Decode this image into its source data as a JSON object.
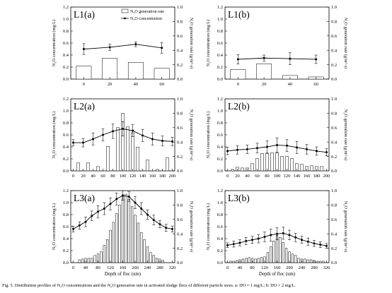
{
  "chart_data": [
    {
      "type": "bar+line",
      "panel_label": "L1(a)",
      "categories": [
        0,
        20,
        40,
        60
      ],
      "bar_series": {
        "name": "N₂O generation rate",
        "values": [
          0.18,
          0.29,
          0.23,
          0.15
        ]
      },
      "line_series": {
        "name": "N₂O concentration",
        "values": [
          0.5,
          0.53,
          0.58,
          0.52
        ],
        "errors": [
          0.09,
          0.05,
          0.04,
          0.09
        ]
      },
      "xlim": [
        -10,
        70
      ],
      "xticks": [
        0,
        20,
        40,
        60
      ],
      "ylim": [
        0,
        1.2
      ],
      "yticks": [
        0,
        0.2,
        0.4,
        0.6,
        0.8,
        1.0,
        1.2
      ],
      "y2lim": [
        0,
        1.0
      ],
      "y2ticks": [
        0,
        0.2,
        0.4,
        0.6,
        0.8,
        1.0
      ],
      "ylabel": "N₂O concentration (mg/L)",
      "y2label": "N₂O generation rate (g/m³·s)",
      "xlabel": "",
      "legend": "top-right"
    },
    {
      "type": "bar+line",
      "panel_label": "L1(b)",
      "categories": [
        0,
        20,
        40,
        60
      ],
      "bar_series": {
        "name": "N₂O generation rate",
        "values": [
          0.13,
          0.21,
          0.05,
          0.03
        ]
      },
      "line_series": {
        "name": "N₂O concentration",
        "values": [
          0.33,
          0.35,
          0.34,
          0.33
        ],
        "errors": [
          0.08,
          0.05,
          0.1,
          0.07
        ]
      },
      "xlim": [
        -10,
        70
      ],
      "xticks": [
        0,
        20,
        40,
        60
      ],
      "ylim": [
        0,
        1.2
      ],
      "yticks": [
        0,
        0.2,
        0.4,
        0.6,
        0.8,
        1.0,
        1.2
      ],
      "y2lim": [
        0,
        1.0
      ],
      "y2ticks": [
        0,
        0.2,
        0.4,
        0.6,
        0.8,
        1.0
      ],
      "ylabel": "N₂O concentration (mg/L)",
      "y2label": "N₂O generation rate (g/m³·s)",
      "xlabel": ""
    },
    {
      "type": "bar+line",
      "panel_label": "L2(a)",
      "categories": [
        0,
        10,
        20,
        30,
        40,
        50,
        60,
        70,
        80,
        90,
        100,
        110,
        120,
        130,
        140,
        150,
        160,
        170,
        180,
        190,
        200
      ],
      "bar_series": {
        "name": "N₂O generation rate",
        "values": [
          0,
          0.11,
          0,
          0.11,
          0,
          0.06,
          0,
          0.34,
          0,
          0.6,
          0.8,
          0.61,
          0.53,
          0.33,
          0,
          0.15,
          0,
          0.02,
          0,
          0.18,
          0
        ]
      },
      "line_series": {
        "x": [
          0,
          20,
          40,
          60,
          80,
          100,
          120,
          140,
          160,
          180,
          200
        ],
        "values": [
          0.47,
          0.47,
          0.53,
          0.6,
          0.66,
          0.7,
          0.67,
          0.59,
          0.53,
          0.5,
          0.49
        ],
        "errors": [
          0.05,
          0.07,
          0.1,
          0.1,
          0.12,
          0.12,
          0.1,
          0.1,
          0.1,
          0.08,
          0.07
        ]
      },
      "xlim": [
        -5,
        205
      ],
      "xticks": [
        0,
        20,
        40,
        60,
        80,
        100,
        120,
        140,
        160,
        180,
        200
      ],
      "ylim": [
        0,
        1.2
      ],
      "yticks": [
        0,
        0.2,
        0.4,
        0.6,
        0.8,
        1.0,
        1.2
      ],
      "y2lim": [
        0,
        1.0
      ],
      "y2ticks": [
        0,
        0.2,
        0.4,
        0.6,
        0.8,
        1.0
      ],
      "ylabel": "N₂O concentration (mg/L)",
      "y2label": "N₂O generation rate (g/m³·s)",
      "xlabel": ""
    },
    {
      "type": "bar+line",
      "panel_label": "L2(b)",
      "categories": [
        0,
        10,
        20,
        30,
        40,
        50,
        60,
        70,
        80,
        90,
        100,
        110,
        120,
        130,
        140,
        150,
        160,
        170,
        180,
        190,
        200
      ],
      "bar_series": {
        "name": "N₂O generation rate",
        "values": [
          0,
          0.02,
          0.05,
          0.04,
          0.04,
          0.1,
          0.17,
          0.24,
          0.24,
          0.25,
          0.25,
          0.2,
          0.2,
          0.17,
          0.1,
          0.09,
          0.06,
          0.07,
          0.06,
          0.06,
          0
        ]
      },
      "line_series": {
        "x": [
          0,
          20,
          40,
          60,
          80,
          100,
          120,
          140,
          160,
          180,
          200
        ],
        "values": [
          0.33,
          0.35,
          0.36,
          0.38,
          0.4,
          0.43,
          0.42,
          0.39,
          0.36,
          0.33,
          0.31
        ],
        "errors": [
          0.06,
          0.07,
          0.07,
          0.08,
          0.1,
          0.12,
          0.1,
          0.1,
          0.08,
          0.07,
          0.06
        ]
      },
      "xlim": [
        -5,
        205
      ],
      "xticks": [
        0,
        20,
        40,
        60,
        80,
        100,
        120,
        140,
        160,
        180,
        200
      ],
      "ylim": [
        0,
        1.2
      ],
      "yticks": [
        0,
        0.2,
        0.4,
        0.6,
        0.8,
        1.0,
        1.2
      ],
      "y2lim": [
        0,
        1.0
      ],
      "y2ticks": [
        0,
        0.2,
        0.4,
        0.6,
        0.8,
        1.0
      ],
      "ylabel": "N₂O concentration (mg/L)",
      "y2label": "N₂O generation rate (g/m³·s)",
      "xlabel": ""
    },
    {
      "type": "bar+line",
      "panel_label": "L3(a)",
      "categories": [
        0,
        10,
        20,
        30,
        40,
        50,
        60,
        70,
        80,
        90,
        100,
        110,
        120,
        130,
        140,
        150,
        160,
        170,
        180,
        190,
        200,
        210,
        220,
        230,
        240,
        250,
        260,
        270,
        280,
        290,
        300,
        310,
        320
      ],
      "bar_series": {
        "name": "N₂O generation rate",
        "values": [
          0,
          0,
          0.04,
          0.05,
          0.06,
          0.06,
          0.06,
          0.1,
          0.12,
          0.15,
          0.24,
          0.32,
          0.45,
          0.56,
          0.68,
          0.8,
          0.92,
          0.95,
          0.88,
          0.78,
          0.66,
          0.55,
          0.42,
          0.32,
          0.22,
          0.14,
          0.1,
          0.06,
          0.05,
          0.03,
          0,
          0,
          0
        ]
      },
      "line_series": {
        "x": [
          0,
          20,
          40,
          60,
          80,
          100,
          120,
          140,
          160,
          180,
          200,
          220,
          240,
          260,
          280,
          300,
          320
        ],
        "values": [
          0.56,
          0.62,
          0.68,
          0.78,
          0.85,
          0.9,
          0.98,
          1.06,
          1.12,
          1.1,
          1.0,
          0.9,
          0.8,
          0.71,
          0.64,
          0.58,
          0.56
        ],
        "errors": [
          0.05,
          0.06,
          0.08,
          0.08,
          0.1,
          0.1,
          0.1,
          0.1,
          0.08,
          0.08,
          0.1,
          0.1,
          0.08,
          0.08,
          0.06,
          0.06,
          0.05
        ]
      },
      "xlim": [
        -8,
        328
      ],
      "xticks": [
        0,
        40,
        80,
        120,
        160,
        200,
        240,
        280,
        320
      ],
      "ylim": [
        0,
        1.2
      ],
      "yticks": [
        0,
        0.2,
        0.4,
        0.6,
        0.8,
        1.0,
        1.2
      ],
      "y2lim": [
        0,
        1.0
      ],
      "y2ticks": [
        0,
        0.2,
        0.4,
        0.6,
        0.8,
        1.0
      ],
      "ylabel": "N₂O concentration (mg/L)",
      "y2label": "N₂O generation rate (g/m³·s)",
      "xlabel": "Depth of floc (um)"
    },
    {
      "type": "bar+line",
      "panel_label": "L3(b)",
      "categories": [
        0,
        10,
        20,
        30,
        40,
        50,
        60,
        70,
        80,
        90,
        100,
        110,
        120,
        130,
        140,
        150,
        160,
        170,
        180,
        190,
        200,
        210,
        220,
        230,
        240,
        250,
        260,
        270,
        280,
        290,
        300,
        310,
        320
      ],
      "bar_series": {
        "name": "N₂O generation rate",
        "values": [
          0,
          0.02,
          0.02,
          0.03,
          0.04,
          0.05,
          0.06,
          0.07,
          0.06,
          0.05,
          0.06,
          0.07,
          0.08,
          0.14,
          0.22,
          0.3,
          0.38,
          0.35,
          0.28,
          0.2,
          0.15,
          0.12,
          0.1,
          0.06,
          0.05,
          0.05,
          0.04,
          0.04,
          0.03,
          0.02,
          0.02,
          0.02,
          0
        ]
      },
      "line_series": {
        "x": [
          0,
          20,
          40,
          60,
          80,
          100,
          120,
          140,
          160,
          180,
          200,
          220,
          240,
          260,
          280,
          300,
          320
        ],
        "values": [
          0.29,
          0.31,
          0.33,
          0.36,
          0.38,
          0.4,
          0.43,
          0.46,
          0.48,
          0.49,
          0.46,
          0.42,
          0.38,
          0.35,
          0.32,
          0.3,
          0.28
        ],
        "errors": [
          0.04,
          0.05,
          0.05,
          0.06,
          0.06,
          0.07,
          0.08,
          0.1,
          0.1,
          0.1,
          0.08,
          0.07,
          0.06,
          0.06,
          0.05,
          0.05,
          0.04
        ]
      },
      "xlim": [
        -8,
        328
      ],
      "xticks": [
        0,
        40,
        80,
        120,
        160,
        200,
        240,
        280,
        320
      ],
      "ylim": [
        0,
        1.2
      ],
      "yticks": [
        0,
        0.2,
        0.4,
        0.6,
        0.8,
        1.0,
        1.2
      ],
      "y2lim": [
        0,
        1.0
      ],
      "y2ticks": [
        0,
        0.2,
        0.4,
        0.6,
        0.8,
        1.0
      ],
      "ylabel": "N₂O concentration (mg/L)",
      "y2label": "N₂O generation rate (g/m³·s)",
      "xlabel": "Depth of floc (um)"
    }
  ],
  "caption": "Fig. 5. Distribution profiles of N₂O concentrations and the N₂O generation rate in activated sludge flocs of different particle sizes. a: DO = 1 mg/L; b: DO = 2 mg/L."
}
